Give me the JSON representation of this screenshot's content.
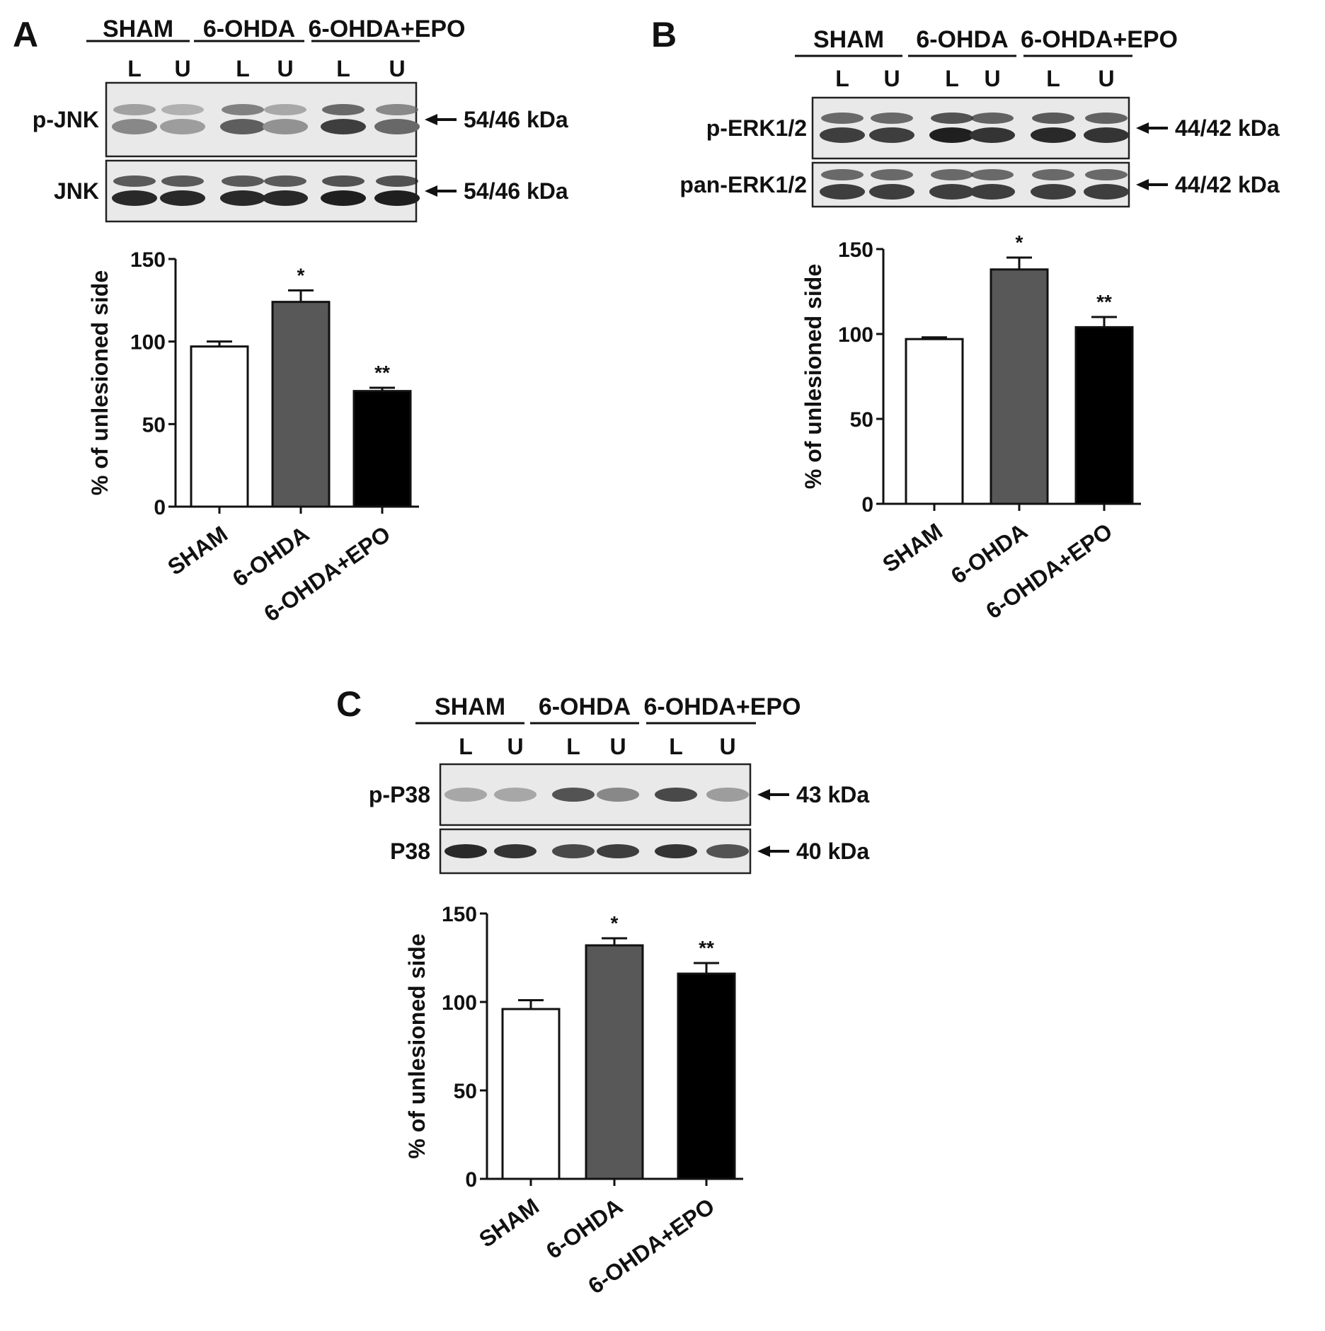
{
  "figure": {
    "panels": [
      {
        "letter": "A",
        "groups": [
          "SHAM",
          "6-OHDA",
          "6-OHDA+EPO"
        ],
        "lanes": [
          "L",
          "U",
          "L",
          "U",
          "L",
          "U"
        ],
        "blots": [
          {
            "label": "p-JNK",
            "kda": "54/46 kDa",
            "bands": 2,
            "intensity": [
              0.45,
              0.35,
              0.65,
              0.4,
              0.8,
              0.6
            ]
          },
          {
            "label": "JNK",
            "kda": "54/46 kDa",
            "bands": 2,
            "intensity": [
              0.9,
              0.9,
              0.9,
              0.9,
              0.95,
              0.95
            ]
          }
        ]
      },
      {
        "letter": "B",
        "groups": [
          "SHAM",
          "6-OHDA",
          "6-OHDA+EPO"
        ],
        "lanes": [
          "L",
          "U",
          "L",
          "U",
          "L",
          "U"
        ],
        "blots": [
          {
            "label": "p-ERK1/2",
            "kda": "44/42 kDa",
            "bands": 2,
            "intensity": [
              0.8,
              0.8,
              0.95,
              0.85,
              0.9,
              0.85
            ]
          },
          {
            "label": "pan-ERK1/2",
            "kda": "44/42 kDa",
            "bands": 2,
            "intensity": [
              0.8,
              0.8,
              0.8,
              0.8,
              0.8,
              0.8
            ]
          }
        ]
      },
      {
        "letter": "C",
        "groups": [
          "SHAM",
          "6-OHDA",
          "6-OHDA+EPO"
        ],
        "lanes": [
          "L",
          "U",
          "L",
          "U",
          "L",
          "U"
        ],
        "blots": [
          {
            "label": "p-P38",
            "kda": "43 kDa",
            "bands": 1,
            "intensity": [
              0.3,
              0.3,
              0.7,
              0.45,
              0.75,
              0.35
            ]
          },
          {
            "label": "P38",
            "kda": "40 kDa",
            "bands": 1,
            "intensity": [
              0.9,
              0.85,
              0.75,
              0.8,
              0.85,
              0.7
            ]
          }
        ]
      }
    ]
  },
  "chart_data": [
    {
      "type": "bar",
      "panel": "A",
      "categories": [
        "SHAM",
        "6-OHDA",
        "6-OHDA+EPO"
      ],
      "values": [
        97,
        124,
        70
      ],
      "errors": [
        3,
        7,
        2
      ],
      "significance": [
        "",
        "*",
        "**"
      ],
      "ylabel": "% of unlesioned side",
      "ylim": [
        0,
        150
      ],
      "yticks": [
        0,
        50,
        100,
        150
      ],
      "colors": [
        "#ffffff",
        "#585858",
        "#000000"
      ]
    },
    {
      "type": "bar",
      "panel": "B",
      "categories": [
        "SHAM",
        "6-OHDA",
        "6-OHDA+EPO"
      ],
      "values": [
        97,
        138,
        104
      ],
      "errors": [
        1,
        7,
        6
      ],
      "significance": [
        "",
        "*",
        "**"
      ],
      "ylabel": "% of unlesioned side",
      "ylim": [
        0,
        150
      ],
      "yticks": [
        0,
        50,
        100,
        150
      ],
      "colors": [
        "#ffffff",
        "#585858",
        "#000000"
      ]
    },
    {
      "type": "bar",
      "panel": "C",
      "categories": [
        "SHAM",
        "6-OHDA",
        "6-OHDA+EPO"
      ],
      "values": [
        96,
        132,
        116
      ],
      "errors": [
        5,
        4,
        6
      ],
      "significance": [
        "",
        "*",
        "**"
      ],
      "ylabel": "% of unlesioned side",
      "ylim": [
        0,
        150
      ],
      "yticks": [
        0,
        50,
        100,
        150
      ],
      "colors": [
        "#ffffff",
        "#585858",
        "#000000"
      ]
    }
  ]
}
